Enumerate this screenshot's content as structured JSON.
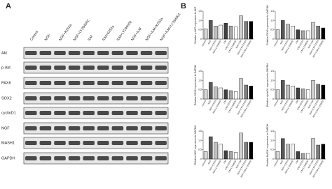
{
  "blot": {
    "label": "A",
    "lanes": [
      "Control",
      "NGF",
      "NGF+K252a",
      "NGF+LY294002",
      "ILM",
      "ILM+K252a",
      "ILM+LY294002",
      "NGF+ILM",
      "NGF+ILM+K252a",
      "NGF+ILM+LY294002"
    ],
    "proteins": [
      "Akt",
      "p-Akt",
      "PAX6",
      "SOX2",
      "cyclinD1",
      "NGF",
      "MASH1",
      "GAPDH"
    ]
  },
  "panel_b_label": "B",
  "chart_data": [
    {
      "type": "bar",
      "y_label": "Relative p-AKT expression to AKT",
      "categories": [
        "Control",
        "NGF",
        "NGF+K252a",
        "NGF+LY294002",
        "ILM",
        "ILM+K252a",
        "ILM+LY294002",
        "NGF+ILM",
        "NGF+ILM+K252a",
        "NGF+ILM+LY294002"
      ],
      "values": [
        0.55,
        1.0,
        0.7,
        0.75,
        0.85,
        0.7,
        0.65,
        1.25,
        0.95,
        0.95
      ],
      "colors": [
        "#d9d9d9",
        "#595959",
        "#bfbfbf",
        "#f2f2f2",
        "#404040",
        "#a6a6a6",
        "#ffffff",
        "#d0d0d0",
        "#7f7f7f",
        "#000000"
      ],
      "ylim": [
        0,
        1.5
      ],
      "yticks": [
        0,
        0.5,
        {
          "value": 1,
          "label": "1.0"
        },
        1.5
      ]
    },
    {
      "type": "bar",
      "y_label": "Relative PAX6 expression to GAPDH",
      "categories": [
        "Control",
        "NGF",
        "NGF+K252a",
        "NGF+LY294002",
        "ILM",
        "ILM+K252a",
        "ILM+LY294002",
        "NGF+ILM",
        "NGF+ILM+K252a",
        "NGF+ILM+LY294002"
      ],
      "values": [
        0.5,
        1.0,
        0.8,
        0.7,
        0.5,
        0.45,
        0.45,
        0.9,
        0.7,
        0.6
      ],
      "colors": [
        "#d9d9d9",
        "#595959",
        "#bfbfbf",
        "#f2f2f2",
        "#404040",
        "#a6a6a6",
        "#ffffff",
        "#d0d0d0",
        "#7f7f7f",
        "#000000"
      ],
      "ylim": [
        0,
        1.5
      ],
      "yticks": [
        0,
        0.5,
        {
          "value": 1,
          "label": "1.0"
        },
        1.5
      ]
    },
    {
      "type": "bar",
      "y_label": "Relative SOX2 expression to GAPDH",
      "categories": [
        "Control",
        "NGF",
        "NGF+K252a",
        "NGF+LY294002",
        "ILM",
        "ILM+K252a",
        "ILM+LY294002",
        "NGF+ILM",
        "NGF+ILM+K252a",
        "NGF+ILM+LY294002"
      ],
      "values": [
        0.5,
        0.9,
        0.65,
        0.6,
        0.5,
        0.45,
        0.4,
        1.1,
        0.75,
        0.7
      ],
      "colors": [
        "#d9d9d9",
        "#595959",
        "#bfbfbf",
        "#f2f2f2",
        "#404040",
        "#a6a6a6",
        "#ffffff",
        "#d0d0d0",
        "#7f7f7f",
        "#000000"
      ],
      "ylim": [
        0,
        1.5
      ],
      "yticks": [
        0,
        0.5,
        {
          "value": 1,
          "label": "1.0"
        },
        1.5
      ]
    },
    {
      "type": "bar",
      "y_label": "Relative cyclinD1 expression to GAPDH",
      "categories": [
        "Control",
        "NGF",
        "NGF+K252a",
        "NGF+LY294002",
        "ILM",
        "ILM+K252a",
        "ILM+LY294002",
        "NGF+ILM",
        "NGF+ILM+K252a",
        "NGF+ILM+LY294002"
      ],
      "values": [
        0.5,
        1.0,
        0.75,
        0.7,
        0.6,
        0.55,
        0.5,
        1.0,
        0.8,
        0.75
      ],
      "colors": [
        "#d9d9d9",
        "#595959",
        "#bfbfbf",
        "#f2f2f2",
        "#404040",
        "#a6a6a6",
        "#ffffff",
        "#d0d0d0",
        "#7f7f7f",
        "#000000"
      ],
      "ylim": [
        0,
        1.5
      ],
      "yticks": [
        0,
        0.5,
        {
          "value": 1,
          "label": "1.0"
        },
        1.5
      ]
    },
    {
      "type": "bar",
      "y_label": "Relative NGF expression to GAPDH",
      "categories": [
        "Control",
        "NGF",
        "NGF+K252a",
        "NGF+LY294002",
        "ILM",
        "ILM+K252a",
        "ILM+LY294002",
        "NGF+ILM",
        "NGF+ILM+K252a",
        "NGF+ILM+LY294002"
      ],
      "values": [
        0.4,
        1.2,
        0.9,
        0.8,
        0.45,
        0.4,
        0.35,
        1.4,
        0.9,
        0.9
      ],
      "colors": [
        "#d9d9d9",
        "#595959",
        "#bfbfbf",
        "#f2f2f2",
        "#404040",
        "#a6a6a6",
        "#ffffff",
        "#d0d0d0",
        "#7f7f7f",
        "#000000"
      ],
      "ylim": [
        0,
        1.5
      ],
      "yticks": [
        0,
        0.5,
        {
          "value": 1,
          "label": "1.0"
        },
        1.5
      ]
    },
    {
      "type": "bar",
      "y_label": "Relative MASH1 expression to GAPDH",
      "categories": [
        "Control",
        "NGF",
        "NGF+K252a",
        "NGF+LY294002",
        "ILM",
        "ILM+K252a",
        "ILM+LY294002",
        "NGF+ILM",
        "NGF+ILM+K252a",
        "NGF+ILM+LY294002"
      ],
      "values": [
        0.4,
        1.1,
        0.8,
        0.8,
        0.4,
        0.3,
        0.3,
        1.1,
        0.75,
        0.8
      ],
      "colors": [
        "#d9d9d9",
        "#595959",
        "#bfbfbf",
        "#f2f2f2",
        "#404040",
        "#a6a6a6",
        "#ffffff",
        "#d0d0d0",
        "#7f7f7f",
        "#000000"
      ],
      "ylim": [
        0,
        1.5
      ],
      "yticks": [
        0,
        0.5,
        {
          "value": 1,
          "label": "1.0"
        },
        1.5
      ]
    }
  ]
}
